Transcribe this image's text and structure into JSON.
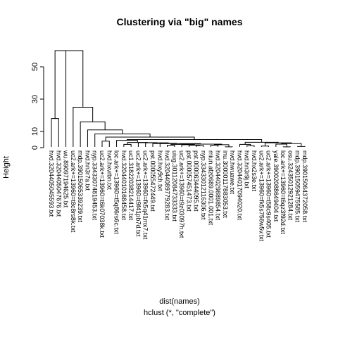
{
  "chart_data": {
    "type": "dendrogram",
    "title": "Clustering via \"big\" names",
    "ylabel": "Height",
    "xlabel": "dist(names)",
    "sublabel": "hclust (*, \"complete\")",
    "y_ticks": [
      0,
      10,
      30,
      50
    ],
    "ylim": [
      0,
      60
    ],
    "leaves": [
      "hvd.3204405045593.txt",
      "hvd.3204405047676.txt",
      "wu.89097194625.txt",
      "uc2.ark+=13960=t8c8rs8k.txt",
      "mdp.39015065339239.txt",
      "hvd.hn3r7a.txt",
      "nyp.33433074819453.txt",
      "uc2.ark+=13960=t6k07038k.txt",
      "hvd.hxvrbn.txt",
      "loc.ark+=13960=t5q86rs6c.txt",
      "hvd.32044010168458.txt",
      "uc1.31822038214417.txt",
      "uc2.ark+=13960=t9f41pb7d.txt",
      "uc2.ark+=13960=fk5q41mx7.txt",
      "pst.000055472449.txt",
      "hvd.hxy9ch.txt",
      "hvd.32044089779283.txt",
      "uiug.30112084733333.txt",
      "uc2.ark+=13960=t9z03097h.txt",
      "pst.000057451473.txt",
      "pst.000063444095.txt",
      "nyp.33433012116306.txt",
      "miun.afz0689.0001.001.txt",
      "hvd.32044029889854.txt",
      "inu.30000117883053.txt",
      "hvd.hwuawe.txt",
      "hvd.32044017094020.txt",
      "hvd.hn3r9j.txt",
      "hvd.hx2s3e.txt",
      "uc2.ark+=13960=fk5s756w5v.txt",
      "uc2.ark+=13960=t58c9s405.txt",
      "yale.39002088649404.txt",
      "loc.ark+=13960=t6qz3f92d.txt",
      "osu.32435012921284.txt",
      "mdp.39015059475585.txt",
      "mdp.39015064372058.txt"
    ],
    "merges": [
      [
        -25,
        -26,
        0.5
      ],
      [
        -33,
        -34,
        0.5
      ],
      [
        -35,
        -36,
        0.7
      ],
      [
        -30,
        -31,
        1.0
      ],
      [
        -28,
        -29,
        1.2
      ],
      [
        -21,
        -22,
        1.3
      ],
      [
        -20,
        6,
        1.5
      ],
      [
        -17,
        -18,
        1.5
      ],
      [
        -19,
        7,
        1.8
      ],
      [
        8,
        9,
        2.0
      ],
      [
        -23,
        -24,
        1.5
      ],
      [
        11,
        1,
        1.8
      ],
      [
        10,
        12,
        2.2
      ],
      [
        -15,
        13,
        2.5
      ],
      [
        -16,
        14,
        2.7
      ],
      [
        -14,
        15,
        3.0
      ],
      [
        -13,
        16,
        3.1
      ],
      [
        -11,
        -12,
        2.0
      ],
      [
        17,
        18,
        3.2
      ],
      [
        -27,
        5,
        2.0
      ],
      [
        -32,
        2,
        2.2
      ],
      [
        21,
        3,
        2.5
      ],
      [
        4,
        22,
        3.0
      ],
      [
        20,
        23,
        3.3
      ],
      [
        -10,
        19,
        4.5
      ],
      [
        25,
        24,
        5.0
      ],
      [
        -8,
        -9,
        4.0
      ],
      [
        27,
        26,
        6.5
      ],
      [
        -7,
        28,
        8.5
      ],
      [
        -6,
        29,
        11.0
      ],
      [
        -5,
        30,
        16.0
      ],
      [
        -4,
        31,
        25.0
      ],
      [
        -1,
        -2,
        18.0
      ],
      [
        -3,
        32,
        60.0
      ],
      [
        33,
        34,
        60.0
      ]
    ]
  }
}
